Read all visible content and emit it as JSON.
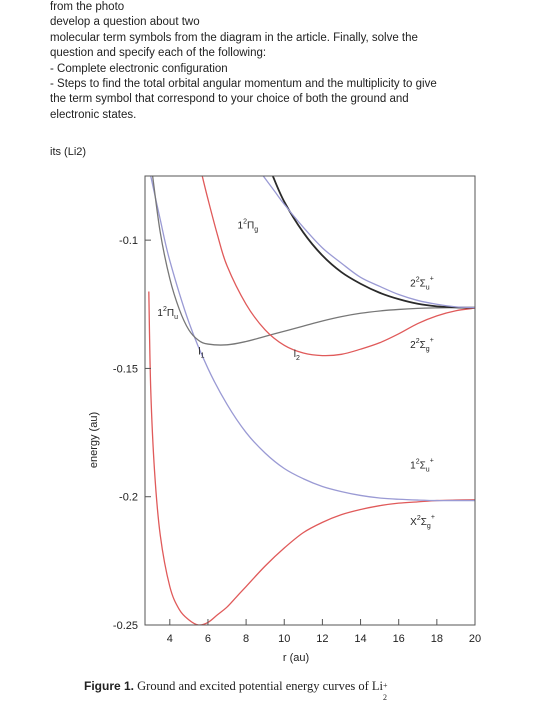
{
  "question": {
    "lines": [
      "from the photo",
      "develop a question about two",
      "molecular term symbols from the diagram in the article. Finally, solve the",
      "question and specify each of the following:",
      "- Complete electronic configuration",
      "- Steps to find the total orbital angular momentum and the multiplicity to give",
      "the term symbol that correspond to your choice of both the ground and",
      "electronic states."
    ],
    "molecule_label": "its (Li2)"
  },
  "caption": {
    "figure_label": "Figure 1.",
    "text": "Ground and excited potential energy curves of Li",
    "species_sub": "2",
    "species_sup": "+"
  },
  "colors": {
    "red": "#e05a5a",
    "blue": "#9a9ad4",
    "gray": "#777777",
    "black": "#2a2a2a",
    "axis": "#555555"
  },
  "chart_data": {
    "type": "line",
    "xlabel": "r (au)",
    "ylabel": "energy (au)",
    "xlim": [
      2.7,
      20
    ],
    "ylim": [
      -0.25,
      -0.075
    ],
    "x_ticks": [
      "4",
      "6",
      "8",
      "10",
      "12",
      "14",
      "16",
      "18",
      "20"
    ],
    "x_tick_values": [
      4,
      6,
      8,
      10,
      12,
      14,
      16,
      18,
      20
    ],
    "y_ticks": [
      "-0.1",
      "-0.15",
      "-0.2",
      "-0.25"
    ],
    "y_tick_values": [
      -0.1,
      -0.15,
      -0.2,
      -0.25
    ],
    "grid": false,
    "series": [
      {
        "name": "X²Σg⁺",
        "color": "red",
        "x": [
          2.9,
          3.0,
          3.2,
          3.5,
          4.0,
          4.5,
          5.0,
          5.5,
          6.0,
          6.5,
          7.0,
          7.5,
          8.0,
          9.0,
          10.0,
          11.0,
          12.0,
          13.0,
          14.0,
          15.0,
          16.0,
          17.0,
          18.0,
          19.0,
          20.0
        ],
        "y": [
          -0.12,
          -0.158,
          -0.19,
          -0.215,
          -0.235,
          -0.244,
          -0.248,
          -0.25,
          -0.249,
          -0.246,
          -0.243,
          -0.239,
          -0.235,
          -0.227,
          -0.22,
          -0.214,
          -0.21,
          -0.207,
          -0.205,
          -0.2035,
          -0.2025,
          -0.202,
          -0.2015,
          -0.2013,
          -0.2012
        ]
      },
      {
        "name": "1²Σu⁺",
        "color": "blue",
        "x": [
          3.0,
          3.5,
          4.0,
          5.0,
          6.0,
          7.0,
          8.0,
          9.0,
          10.0,
          11.0,
          12.0,
          13.0,
          14.0,
          15.0,
          16.0,
          17.0,
          18.0,
          19.0,
          20.0
        ],
        "y": [
          -0.075,
          -0.092,
          -0.108,
          -0.132,
          -0.15,
          -0.164,
          -0.175,
          -0.183,
          -0.189,
          -0.193,
          -0.196,
          -0.198,
          -0.1995,
          -0.2005,
          -0.201,
          -0.2013,
          -0.2015,
          -0.2015,
          -0.2015
        ]
      },
      {
        "name": "1²Πu",
        "color": "gray",
        "x": [
          3.1,
          3.5,
          4.0,
          4.5,
          5.0,
          5.5,
          6.0,
          7.0,
          8.0,
          9.0,
          10.0,
          11.0,
          12.0,
          13.0,
          14.0,
          15.0,
          16.0,
          17.0,
          18.0,
          19.0,
          20.0
        ],
        "y": [
          -0.075,
          -0.097,
          -0.115,
          -0.127,
          -0.135,
          -0.139,
          -0.1405,
          -0.1408,
          -0.1395,
          -0.1375,
          -0.1355,
          -0.1335,
          -0.1315,
          -0.1298,
          -0.1285,
          -0.1276,
          -0.127,
          -0.1266,
          -0.1264,
          -0.1263,
          -0.1263
        ]
      },
      {
        "name": "2²Σg⁺",
        "color": "red",
        "x": [
          5.7,
          6.0,
          6.5,
          7.0,
          8.0,
          9.0,
          10.0,
          11.0,
          12.0,
          13.0,
          14.0,
          15.0,
          16.0,
          17.0,
          18.0,
          19.0,
          20.0
        ],
        "y": [
          -0.075,
          -0.084,
          -0.098,
          -0.11,
          -0.125,
          -0.135,
          -0.141,
          -0.144,
          -0.145,
          -0.1445,
          -0.1425,
          -0.14,
          -0.1365,
          -0.1325,
          -0.1295,
          -0.1275,
          -0.1265
        ]
      },
      {
        "name": "1²Πg",
        "color": "black",
        "x": [
          9.4,
          10.0,
          11.0,
          12.0,
          13.0,
          14.0,
          15.0,
          16.0,
          17.0,
          18.0,
          19.0,
          20.0
        ],
        "y": [
          -0.075,
          -0.085,
          -0.097,
          -0.106,
          -0.1125,
          -0.117,
          -0.1205,
          -0.123,
          -0.1248,
          -0.1258,
          -0.1262,
          -0.1263
        ]
      },
      {
        "name": "2²Σu⁺",
        "color": "blue",
        "x": [
          8.9,
          9.5,
          10.0,
          11.0,
          12.0,
          13.0,
          14.0,
          15.0,
          16.0,
          17.0,
          18.0,
          19.0,
          20.0
        ],
        "y": [
          -0.075,
          -0.081,
          -0.086,
          -0.095,
          -0.103,
          -0.109,
          -0.1145,
          -0.118,
          -0.1212,
          -0.1235,
          -0.125,
          -0.126,
          -0.1263
        ]
      }
    ],
    "annotations": [
      {
        "id": "X",
        "main": "X",
        "sup": "2",
        "sym": "Σ",
        "sub": "g",
        "sup2": "+",
        "x": 16.6,
        "y": -0.211,
        "color": "#222222"
      },
      {
        "id": "1Su",
        "main": "1",
        "sup": "2",
        "sym": "Σ",
        "sub": "u",
        "sup2": "+",
        "x": 16.6,
        "y": -0.189,
        "color": "#222222"
      },
      {
        "id": "2Sg",
        "main": "2",
        "sup": "2",
        "sym": "Σ",
        "sub": "g",
        "sup2": "+",
        "x": 16.6,
        "y": -0.142,
        "color": "#222222"
      },
      {
        "id": "2Su",
        "main": "2",
        "sup": "2",
        "sym": "Σ",
        "sub": "u",
        "sup2": "+",
        "x": 16.6,
        "y": -0.118,
        "color": "#222222"
      },
      {
        "id": "1Pu",
        "main": "1",
        "sup": "2",
        "sym": "Π",
        "sub": "u",
        "sup2": "",
        "x": 3.35,
        "y": -0.1295,
        "color": "#222222"
      },
      {
        "id": "1Pg",
        "main": "1",
        "sup": "2",
        "sym": "Π",
        "sub": "g",
        "sup2": "",
        "x": 7.55,
        "y": -0.0955,
        "color": "#222222"
      },
      {
        "id": "L1",
        "main": "l",
        "sup": "",
        "sym": "",
        "sub": "1",
        "sup2": "",
        "x": 5.5,
        "y": -0.1445,
        "color": "#222222"
      },
      {
        "id": "L2",
        "main": "l",
        "sup": "",
        "sym": "",
        "sub": "2",
        "sup2": "",
        "x": 10.5,
        "y": -0.1455,
        "color": "#222222"
      }
    ]
  }
}
